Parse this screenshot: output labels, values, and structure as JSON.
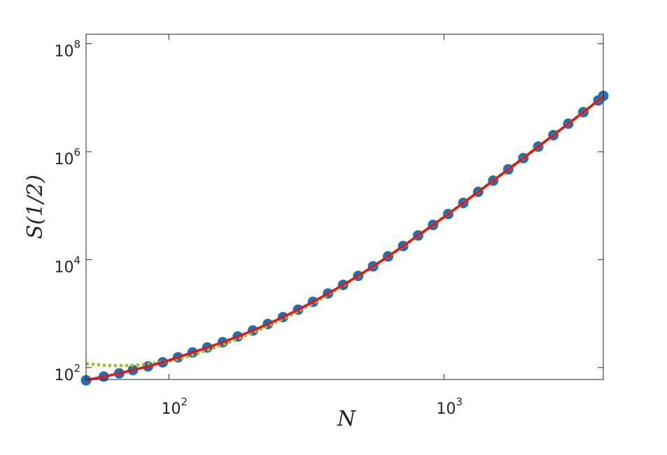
{
  "chart_data": {
    "type": "line",
    "xlabel": "N",
    "ylabel": "S(1/2)",
    "x_scale": "log",
    "y_scale": "log",
    "xlim": [
      50,
      3800
    ],
    "ylim": [
      60,
      150000000
    ],
    "x_ticks": [
      {
        "value": 100,
        "base": "10",
        "exp": "2"
      },
      {
        "value": 1000,
        "base": "10",
        "exp": "3"
      }
    ],
    "y_ticks": [
      {
        "value": 100,
        "base": "10",
        "exp": "2"
      },
      {
        "value": 10000,
        "base": "10",
        "exp": "4"
      },
      {
        "value": 1000000,
        "base": "10",
        "exp": "6"
      },
      {
        "value": 100000000,
        "base": "10",
        "exp": "8"
      }
    ],
    "grid": false,
    "box": true,
    "series": [
      {
        "style": "markers",
        "color": "#1f6fb4",
        "x": [
          50,
          58,
          66,
          74,
          84,
          95,
          108,
          122,
          138,
          157,
          178,
          202,
          229,
          260,
          295,
          334,
          379,
          430,
          488,
          553,
          627,
          711,
          806,
          914,
          1037,
          1176,
          1333,
          1512,
          1715,
          1945,
          2205,
          2500,
          2835,
          3215,
          3645,
          3800
        ],
        "y": [
          58,
          68,
          78,
          90,
          105,
          125,
          155,
          190,
          235,
          295,
          375,
          485,
          640,
          860,
          1180,
          1650,
          2350,
          3400,
          5000,
          7500,
          11500,
          17800,
          28000,
          44000,
          70000,
          112000,
          180000,
          290000,
          470000,
          760000,
          1240000,
          2020000,
          3300000,
          5400000,
          8900000,
          10800000
        ]
      },
      {
        "style": "dotted",
        "color": "#99c31a",
        "x": [
          50,
          58,
          66,
          74,
          84,
          95,
          108,
          122,
          138,
          157,
          178,
          202,
          229,
          260,
          295,
          334,
          379,
          430,
          488,
          553,
          627,
          711,
          806,
          914,
          1037,
          1176,
          1333,
          1512,
          1715,
          1945,
          2205,
          2500,
          2835,
          3215,
          3645,
          3800
        ],
        "y": [
          118,
          110,
          108,
          110,
          116,
          126,
          143,
          170,
          210,
          265,
          340,
          445,
          590,
          800,
          1100,
          1550,
          2250,
          3300,
          4900,
          7400,
          11400,
          17600,
          27800,
          44000,
          70000,
          112000,
          180000,
          290000,
          470000,
          760000,
          1240000,
          2020000,
          3300000,
          5400000,
          8900000,
          10800000
        ]
      },
      {
        "style": "solid",
        "color": "#e8141a",
        "x": [
          50,
          58,
          66,
          74,
          84,
          95,
          108,
          122,
          138,
          157,
          178,
          202,
          229,
          260,
          295,
          334,
          379,
          430,
          488,
          553,
          627,
          711,
          806,
          914,
          1037,
          1176,
          1333,
          1512,
          1715,
          1945,
          2205,
          2500,
          2835,
          3215,
          3645,
          3800
        ],
        "y": [
          58,
          68,
          78,
          90,
          105,
          125,
          155,
          190,
          235,
          295,
          375,
          485,
          640,
          860,
          1180,
          1650,
          2350,
          3400,
          5000,
          7500,
          11500,
          17800,
          28000,
          44000,
          70000,
          112000,
          180000,
          290000,
          470000,
          760000,
          1240000,
          2020000,
          3300000,
          5400000,
          8900000,
          10800000
        ]
      }
    ]
  }
}
